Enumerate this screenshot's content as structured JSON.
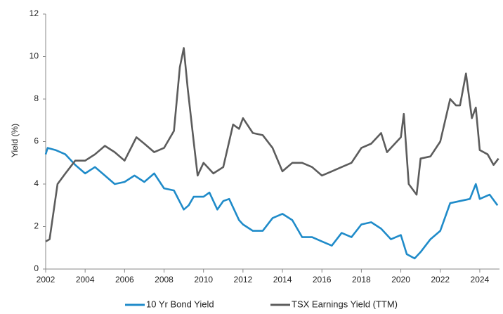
{
  "chart_data": {
    "type": "line",
    "ylabel": "Yield (%)",
    "xlim": [
      2002,
      2025
    ],
    "xticks": [
      2002,
      2004,
      2006,
      2008,
      2010,
      2012,
      2014,
      2016,
      2018,
      2020,
      2022,
      2024
    ],
    "ylim": [
      0,
      12
    ],
    "yticks": [
      0,
      2,
      4,
      6,
      8,
      10,
      12
    ],
    "grid": false,
    "legend": "bottom",
    "series": [
      {
        "name": "10 Yr Bond Yield",
        "color": "#1f8bc9",
        "x": [
          2002,
          2002.1,
          2002.5,
          2003,
          2003.5,
          2004,
          2004.5,
          2005,
          2005.5,
          2006,
          2006.5,
          2007,
          2007.5,
          2008,
          2008.5,
          2009,
          2009.25,
          2009.5,
          2010,
          2010.3,
          2010.7,
          2011,
          2011.3,
          2011.8,
          2012,
          2012.5,
          2013,
          2013.5,
          2014,
          2014.5,
          2015,
          2015.5,
          2016,
          2016.5,
          2017,
          2017.5,
          2018,
          2018.5,
          2019,
          2019.5,
          2020,
          2020.3,
          2020.7,
          2021,
          2021.5,
          2022,
          2022.5,
          2023,
          2023.5,
          2023.8,
          2024,
          2024.5,
          2024.9
        ],
        "values": [
          5.4,
          5.7,
          5.6,
          5.4,
          4.9,
          4.5,
          4.8,
          4.4,
          4.0,
          4.1,
          4.4,
          4.1,
          4.5,
          3.8,
          3.7,
          2.8,
          3.0,
          3.4,
          3.4,
          3.6,
          2.8,
          3.2,
          3.3,
          2.3,
          2.1,
          1.8,
          1.8,
          2.4,
          2.6,
          2.3,
          1.5,
          1.5,
          1.3,
          1.1,
          1.7,
          1.5,
          2.1,
          2.2,
          1.9,
          1.4,
          1.6,
          0.7,
          0.5,
          0.8,
          1.4,
          1.8,
          3.1,
          3.2,
          3.3,
          4.0,
          3.3,
          3.5,
          3.0
        ]
      },
      {
        "name": "TSX Earnings Yield (TTM)",
        "color": "#5c5c5c",
        "x": [
          2002,
          2002.2,
          2002.6,
          2003,
          2003.5,
          2004,
          2004.5,
          2005,
          2005.5,
          2006,
          2006.6,
          2007,
          2007.5,
          2008,
          2008.5,
          2008.8,
          2009,
          2009.2,
          2009.5,
          2009.7,
          2010,
          2010.5,
          2011,
          2011.5,
          2011.8,
          2012,
          2012.5,
          2013,
          2013.5,
          2014,
          2014.5,
          2015,
          2015.5,
          2016,
          2016.5,
          2017,
          2017.5,
          2018,
          2018.5,
          2019,
          2019.3,
          2019.7,
          2020,
          2020.15,
          2020.4,
          2020.8,
          2021,
          2021.5,
          2022,
          2022.5,
          2022.8,
          2023,
          2023.3,
          2023.6,
          2023.8,
          2024,
          2024.4,
          2024.7,
          2024.95
        ],
        "values": [
          1.3,
          1.4,
          4.0,
          4.5,
          5.1,
          5.1,
          5.4,
          5.8,
          5.5,
          5.1,
          6.2,
          5.9,
          5.5,
          5.7,
          6.5,
          9.5,
          10.4,
          8.5,
          6.0,
          4.4,
          5.0,
          4.5,
          4.8,
          6.8,
          6.6,
          7.1,
          6.4,
          6.3,
          5.7,
          4.6,
          5.0,
          5.0,
          4.8,
          4.4,
          4.6,
          4.8,
          5.0,
          5.7,
          5.9,
          6.4,
          5.5,
          5.9,
          6.2,
          7.3,
          4.0,
          3.5,
          5.2,
          5.3,
          6.0,
          8.0,
          7.7,
          7.7,
          9.2,
          7.1,
          7.6,
          5.6,
          5.4,
          4.9,
          5.2
        ]
      }
    ]
  }
}
